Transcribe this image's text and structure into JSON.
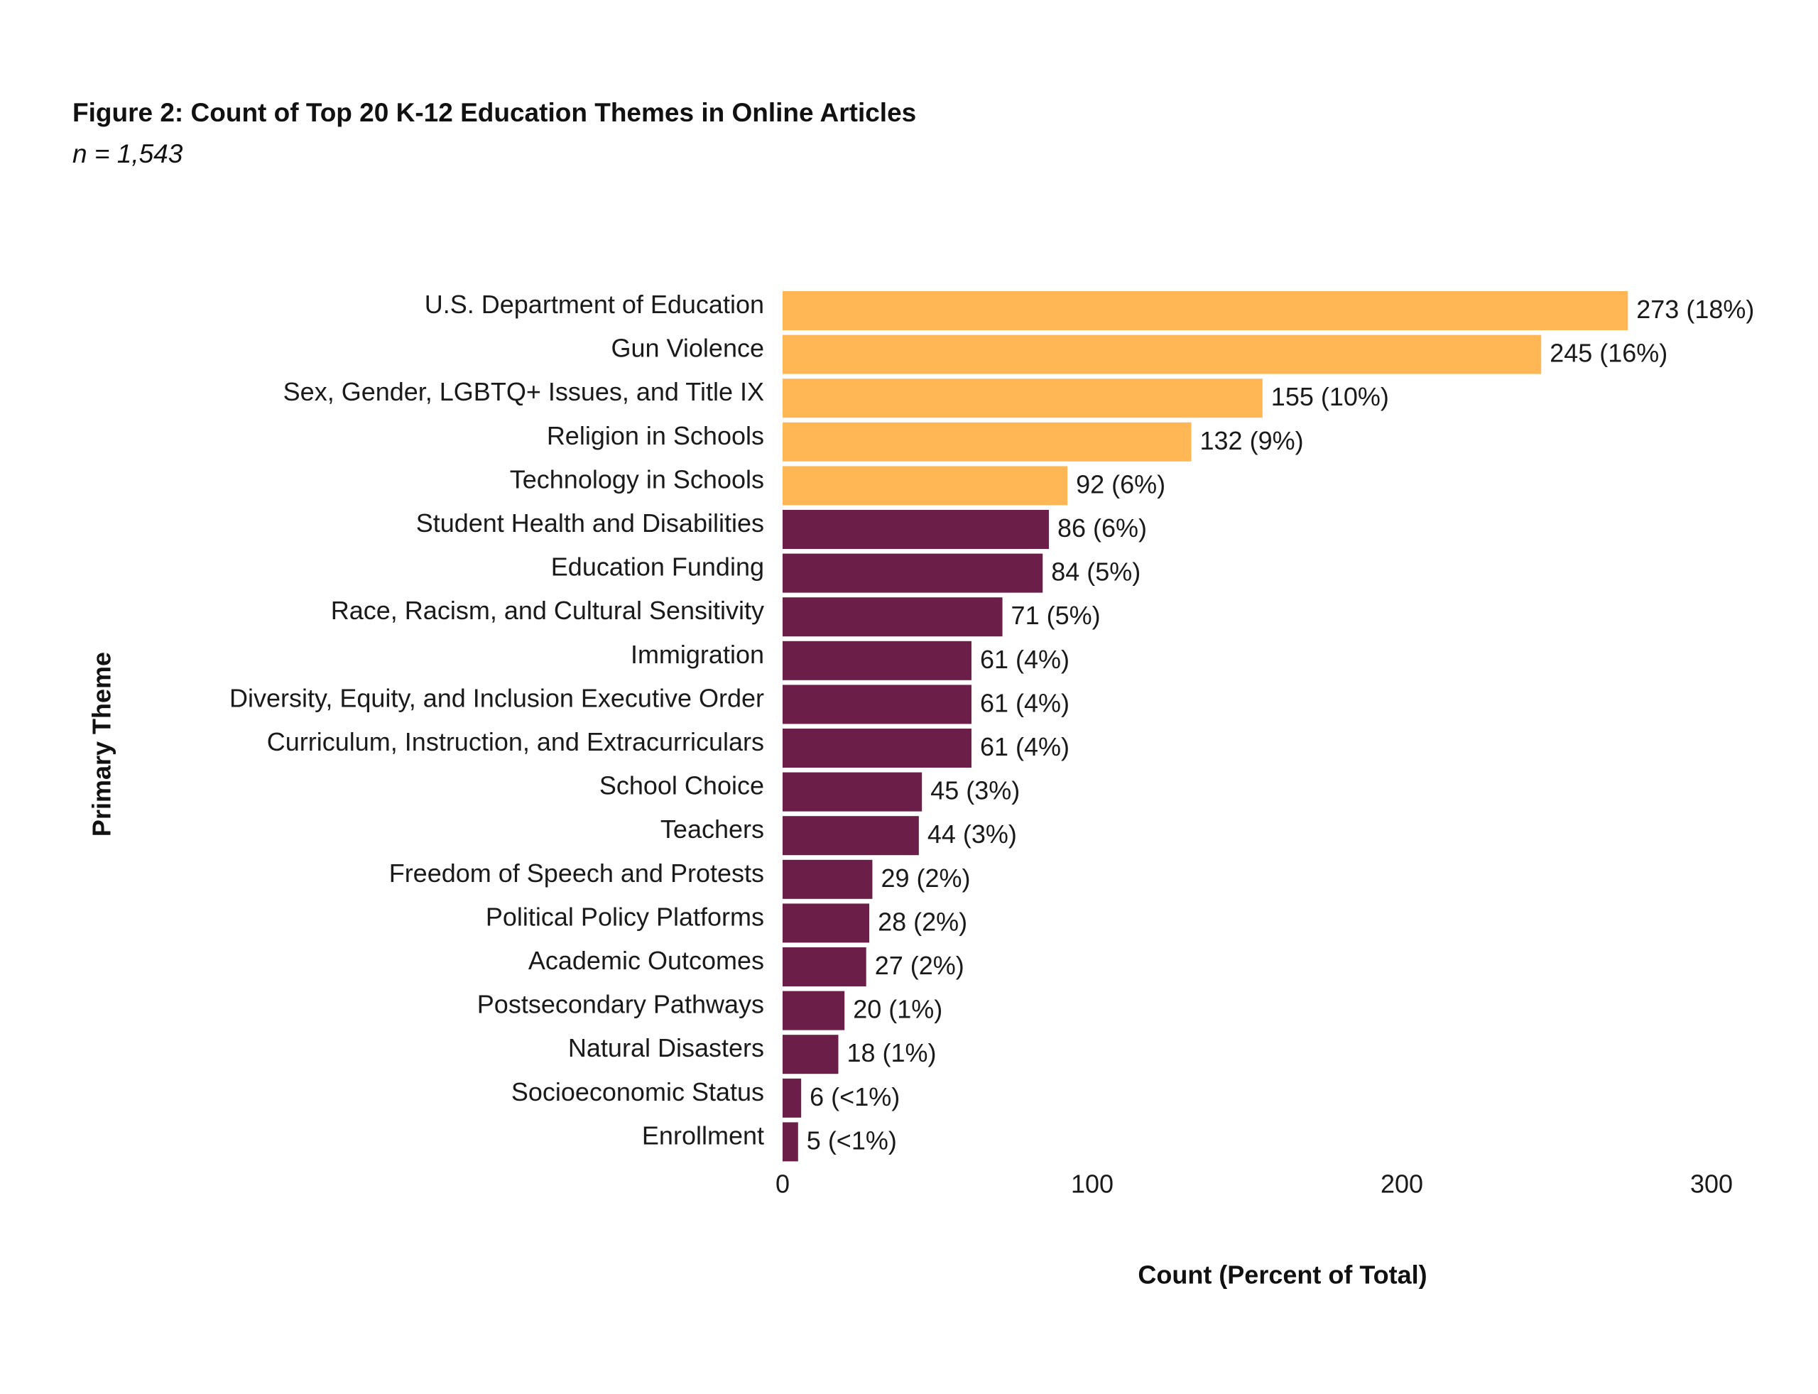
{
  "chart_data": {
    "type": "bar",
    "orientation": "horizontal",
    "title": "Figure 2: Count of Top 20 K-12 Education Themes in Online Articles",
    "subtitle": "n = 1,543",
    "xlabel": "Count (Percent of Total)",
    "ylabel": "Primary Theme",
    "xlim": [
      0,
      300
    ],
    "xticks": [
      0,
      100,
      200,
      300
    ],
    "grid": false,
    "legend": "none",
    "colors": {
      "highlight": "#FFB755",
      "default": "#6B1E48"
    },
    "highlight_count": 5,
    "categories": [
      "U.S. Department of Education",
      "Gun Violence",
      "Sex, Gender, LGBTQ+ Issues, and Title IX",
      "Religion in Schools",
      "Technology in Schools",
      "Student Health and Disabilities",
      "Education Funding",
      "Race, Racism, and Cultural Sensitivity",
      "Immigration",
      "Diversity, Equity, and Inclusion Executive Order",
      "Curriculum, Instruction, and Extracurriculars",
      "School Choice",
      "Teachers",
      "Freedom of Speech and Protests",
      "Political Policy Platforms",
      "Academic Outcomes",
      "Postsecondary Pathways",
      "Natural Disasters",
      "Socioeconomic Status",
      "Enrollment"
    ],
    "values": [
      273,
      245,
      155,
      132,
      92,
      86,
      84,
      71,
      61,
      61,
      61,
      45,
      44,
      29,
      28,
      27,
      20,
      18,
      6,
      5
    ],
    "data_labels": [
      "273 (18%)",
      "245 (16%)",
      "155 (10%)",
      "132 (9%)",
      "92 (6%)",
      "86 (6%)",
      "84 (5%)",
      "71 (5%)",
      "61 (4%)",
      "61 (4%)",
      "61 (4%)",
      "45 (3%)",
      "44 (3%)",
      "29 (2%)",
      "28 (2%)",
      "27 (2%)",
      "20 (1%)",
      "18 (1%)",
      "6 (<1%)",
      "5 (<1%)"
    ]
  }
}
